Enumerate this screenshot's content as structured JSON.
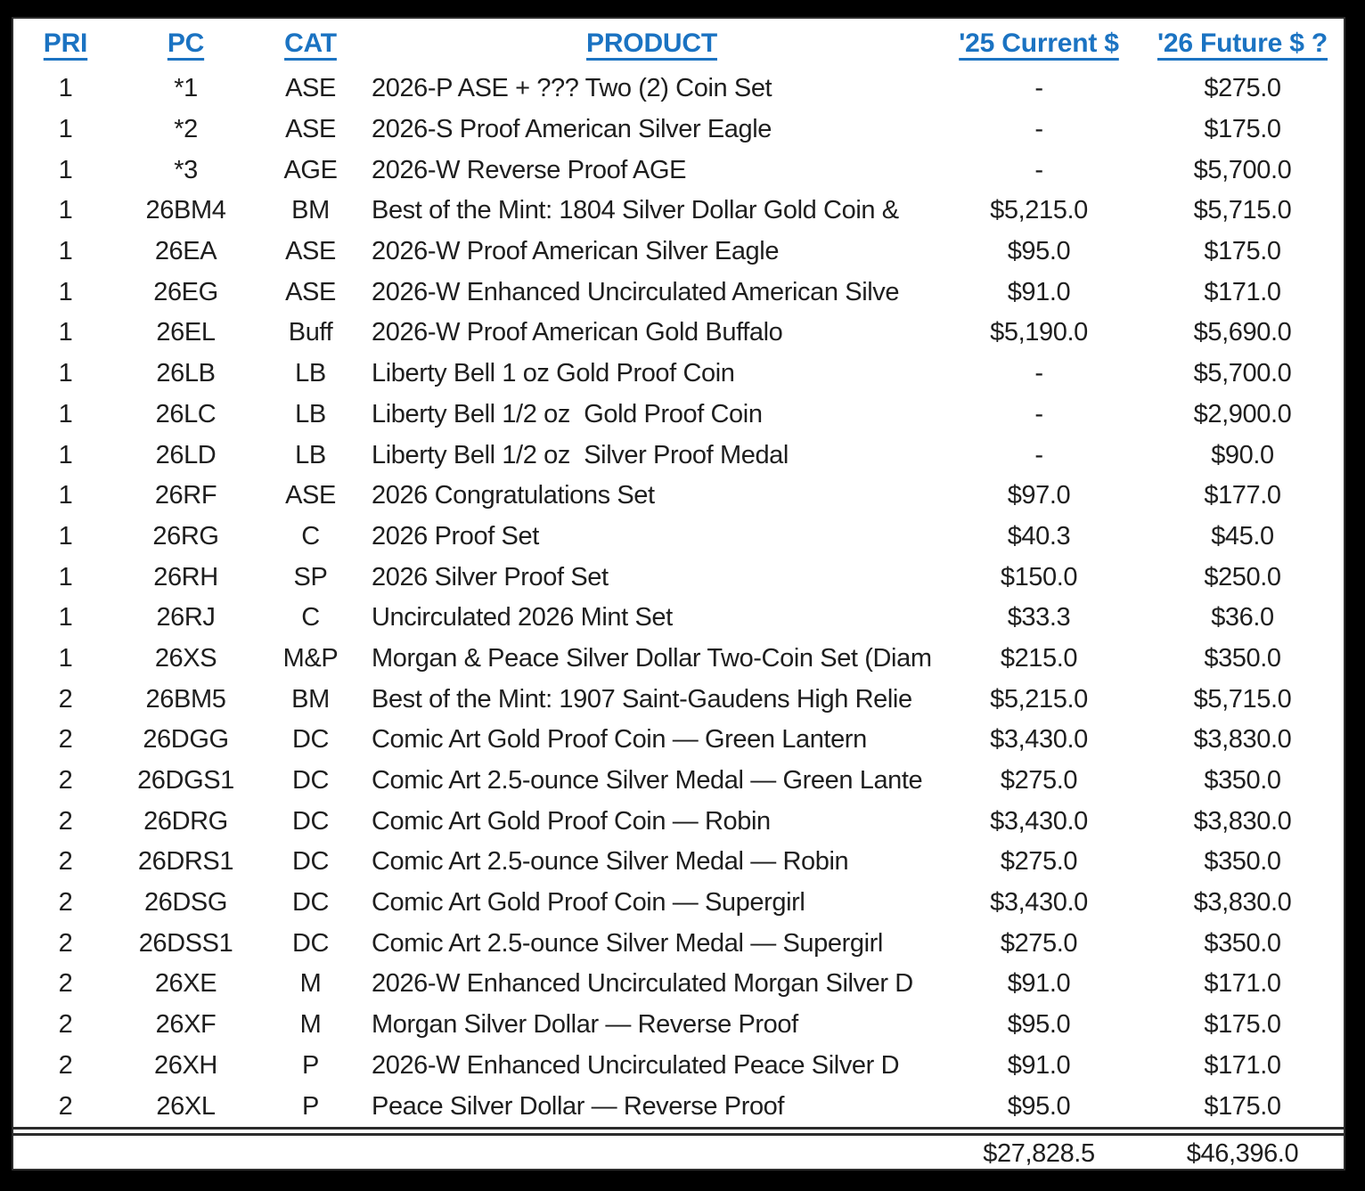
{
  "colors": {
    "header_blue": "#1b73c2",
    "body_text": "#1e1e1e",
    "frame_black": "#000000",
    "sheet_white": "#ffffff"
  },
  "table": {
    "headers": {
      "pri": "PRI",
      "pc": "PC",
      "cat": "CAT",
      "product": "PRODUCT",
      "cur": "'25 Current $",
      "fut": "'26 Future $ ?"
    },
    "rows": [
      {
        "pri": "1",
        "pc": "*1",
        "cat": "ASE",
        "product": "2026-P ASE + ??? Two (2) Coin Set",
        "cur": "-",
        "fut": "$275.0"
      },
      {
        "pri": "1",
        "pc": "*2",
        "cat": "ASE",
        "product": "2026-S Proof American Silver Eagle",
        "cur": "-",
        "fut": "$175.0"
      },
      {
        "pri": "1",
        "pc": "*3",
        "cat": "AGE",
        "product": "2026-W Reverse Proof AGE",
        "cur": "-",
        "fut": "$5,700.0"
      },
      {
        "pri": "1",
        "pc": "26BM4",
        "cat": "BM",
        "product": "Best of the Mint: 1804 Silver Dollar Gold Coin &",
        "cur": "$5,215.0",
        "fut": "$5,715.0"
      },
      {
        "pri": "1",
        "pc": "26EA",
        "cat": "ASE",
        "product": "2026-W Proof American Silver Eagle",
        "cur": "$95.0",
        "fut": "$175.0"
      },
      {
        "pri": "1",
        "pc": "26EG",
        "cat": "ASE",
        "product": "2026-W Enhanced Uncirculated American Silve",
        "cur": "$91.0",
        "fut": "$171.0"
      },
      {
        "pri": "1",
        "pc": "26EL",
        "cat": "Buff",
        "product": "2026-W Proof American Gold Buffalo",
        "cur": "$5,190.0",
        "fut": "$5,690.0"
      },
      {
        "pri": "1",
        "pc": "26LB",
        "cat": "LB",
        "product": "Liberty Bell 1 oz Gold Proof Coin",
        "cur": "-",
        "fut": "$5,700.0"
      },
      {
        "pri": "1",
        "pc": "26LC",
        "cat": "LB",
        "product": "Liberty Bell 1/2 oz  Gold Proof Coin",
        "cur": "-",
        "fut": "$2,900.0"
      },
      {
        "pri": "1",
        "pc": "26LD",
        "cat": "LB",
        "product": "Liberty Bell 1/2 oz  Silver Proof Medal",
        "cur": "-",
        "fut": "$90.0"
      },
      {
        "pri": "1",
        "pc": "26RF",
        "cat": "ASE",
        "product": "2026 Congratulations Set",
        "cur": "$97.0",
        "fut": "$177.0"
      },
      {
        "pri": "1",
        "pc": "26RG",
        "cat": "C",
        "product": "2026 Proof Set",
        "cur": "$40.3",
        "fut": "$45.0"
      },
      {
        "pri": "1",
        "pc": "26RH",
        "cat": "SP",
        "product": "2026 Silver Proof Set",
        "cur": "$150.0",
        "fut": "$250.0"
      },
      {
        "pri": "1",
        "pc": "26RJ",
        "cat": "C",
        "product": "Uncirculated 2026 Mint Set",
        "cur": "$33.3",
        "fut": "$36.0"
      },
      {
        "pri": "1",
        "pc": "26XS",
        "cat": "M&P",
        "product": "Morgan & Peace Silver Dollar Two-Coin Set (Diam",
        "cur": "$215.0",
        "fut": "$350.0"
      },
      {
        "pri": "2",
        "pc": "26BM5",
        "cat": "BM",
        "product": "Best of the Mint: 1907 Saint-Gaudens High Relie",
        "cur": "$5,215.0",
        "fut": "$5,715.0"
      },
      {
        "pri": "2",
        "pc": "26DGG",
        "cat": "DC",
        "product": "Comic Art Gold Proof Coin — Green Lantern",
        "cur": "$3,430.0",
        "fut": "$3,830.0"
      },
      {
        "pri": "2",
        "pc": "26DGS1",
        "cat": "DC",
        "product": "Comic Art 2.5-ounce Silver Medal — Green Lante",
        "cur": "$275.0",
        "fut": "$350.0"
      },
      {
        "pri": "2",
        "pc": "26DRG",
        "cat": "DC",
        "product": "Comic Art Gold Proof Coin — Robin",
        "cur": "$3,430.0",
        "fut": "$3,830.0"
      },
      {
        "pri": "2",
        "pc": "26DRS1",
        "cat": "DC",
        "product": "Comic Art 2.5-ounce Silver Medal — Robin",
        "cur": "$275.0",
        "fut": "$350.0"
      },
      {
        "pri": "2",
        "pc": "26DSG",
        "cat": "DC",
        "product": "Comic Art Gold Proof Coin — Supergirl",
        "cur": "$3,430.0",
        "fut": "$3,830.0"
      },
      {
        "pri": "2",
        "pc": "26DSS1",
        "cat": "DC",
        "product": "Comic Art 2.5-ounce Silver Medal — Supergirl",
        "cur": "$275.0",
        "fut": "$350.0"
      },
      {
        "pri": "2",
        "pc": "26XE",
        "cat": "M",
        "product": "2026-W Enhanced Uncirculated Morgan Silver D",
        "cur": "$91.0",
        "fut": "$171.0"
      },
      {
        "pri": "2",
        "pc": "26XF",
        "cat": "M",
        "product": "Morgan Silver Dollar — Reverse Proof",
        "cur": "$95.0",
        "fut": "$175.0"
      },
      {
        "pri": "2",
        "pc": "26XH",
        "cat": "P",
        "product": "2026-W Enhanced Uncirculated Peace Silver D",
        "cur": "$91.0",
        "fut": "$171.0"
      },
      {
        "pri": "2",
        "pc": "26XL",
        "cat": "P",
        "product": "Peace Silver Dollar — Reverse Proof",
        "cur": "$95.0",
        "fut": "$175.0"
      }
    ],
    "totals": {
      "cur": "$27,828.5",
      "fut": "$46,396.0"
    }
  }
}
